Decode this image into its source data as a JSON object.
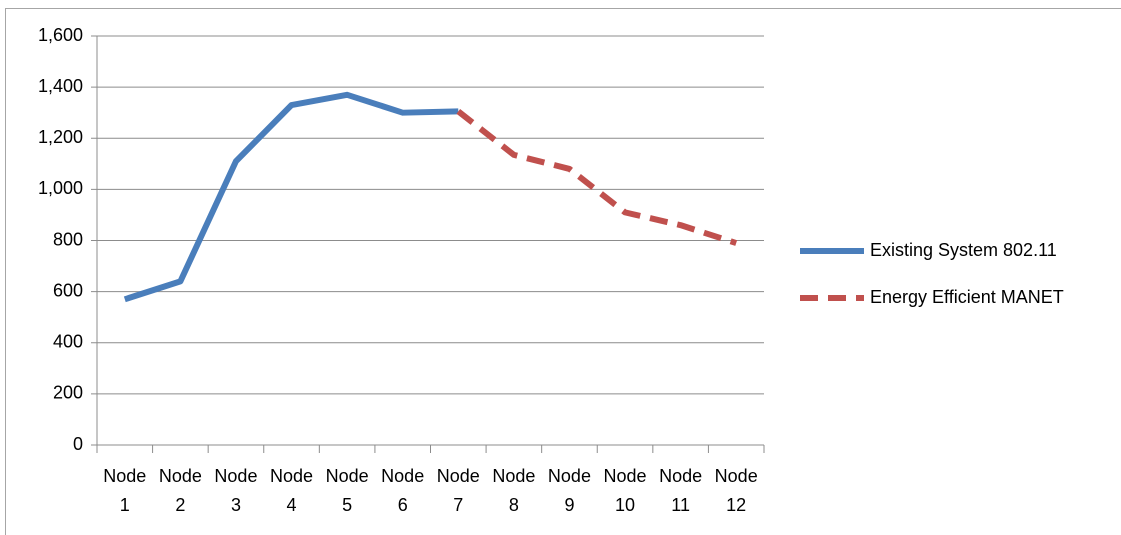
{
  "chart_data": {
    "type": "line",
    "categories": [
      "Node 1",
      "Node 2",
      "Node 3",
      "Node 4",
      "Node 5",
      "Node 6",
      "Node 7",
      "Node 8",
      "Node 9",
      "Node 10",
      "Node 11",
      "Node 12"
    ],
    "series": [
      {
        "name": "Existing System 802.11",
        "color": "#4a7ebb",
        "dash": false,
        "values": [
          570,
          640,
          1110,
          1330,
          1370,
          1300,
          1305,
          null,
          null,
          null,
          null,
          null
        ]
      },
      {
        "name": "Energy Efficient MANET",
        "color": "#c0504d",
        "dash": true,
        "values": [
          null,
          null,
          null,
          null,
          null,
          null,
          1305,
          1135,
          1080,
          910,
          860,
          790
        ]
      }
    ],
    "ylim": [
      0,
      1600
    ],
    "yticks": [
      0,
      200,
      400,
      600,
      800,
      {
        "value": 1000,
        "label": "1,000"
      },
      {
        "value": 1200,
        "label": "1,200"
      },
      {
        "value": 1400,
        "label": "1,400"
      },
      {
        "value": 1600,
        "label": "1,600"
      }
    ],
    "grid": true,
    "legend": "right"
  }
}
